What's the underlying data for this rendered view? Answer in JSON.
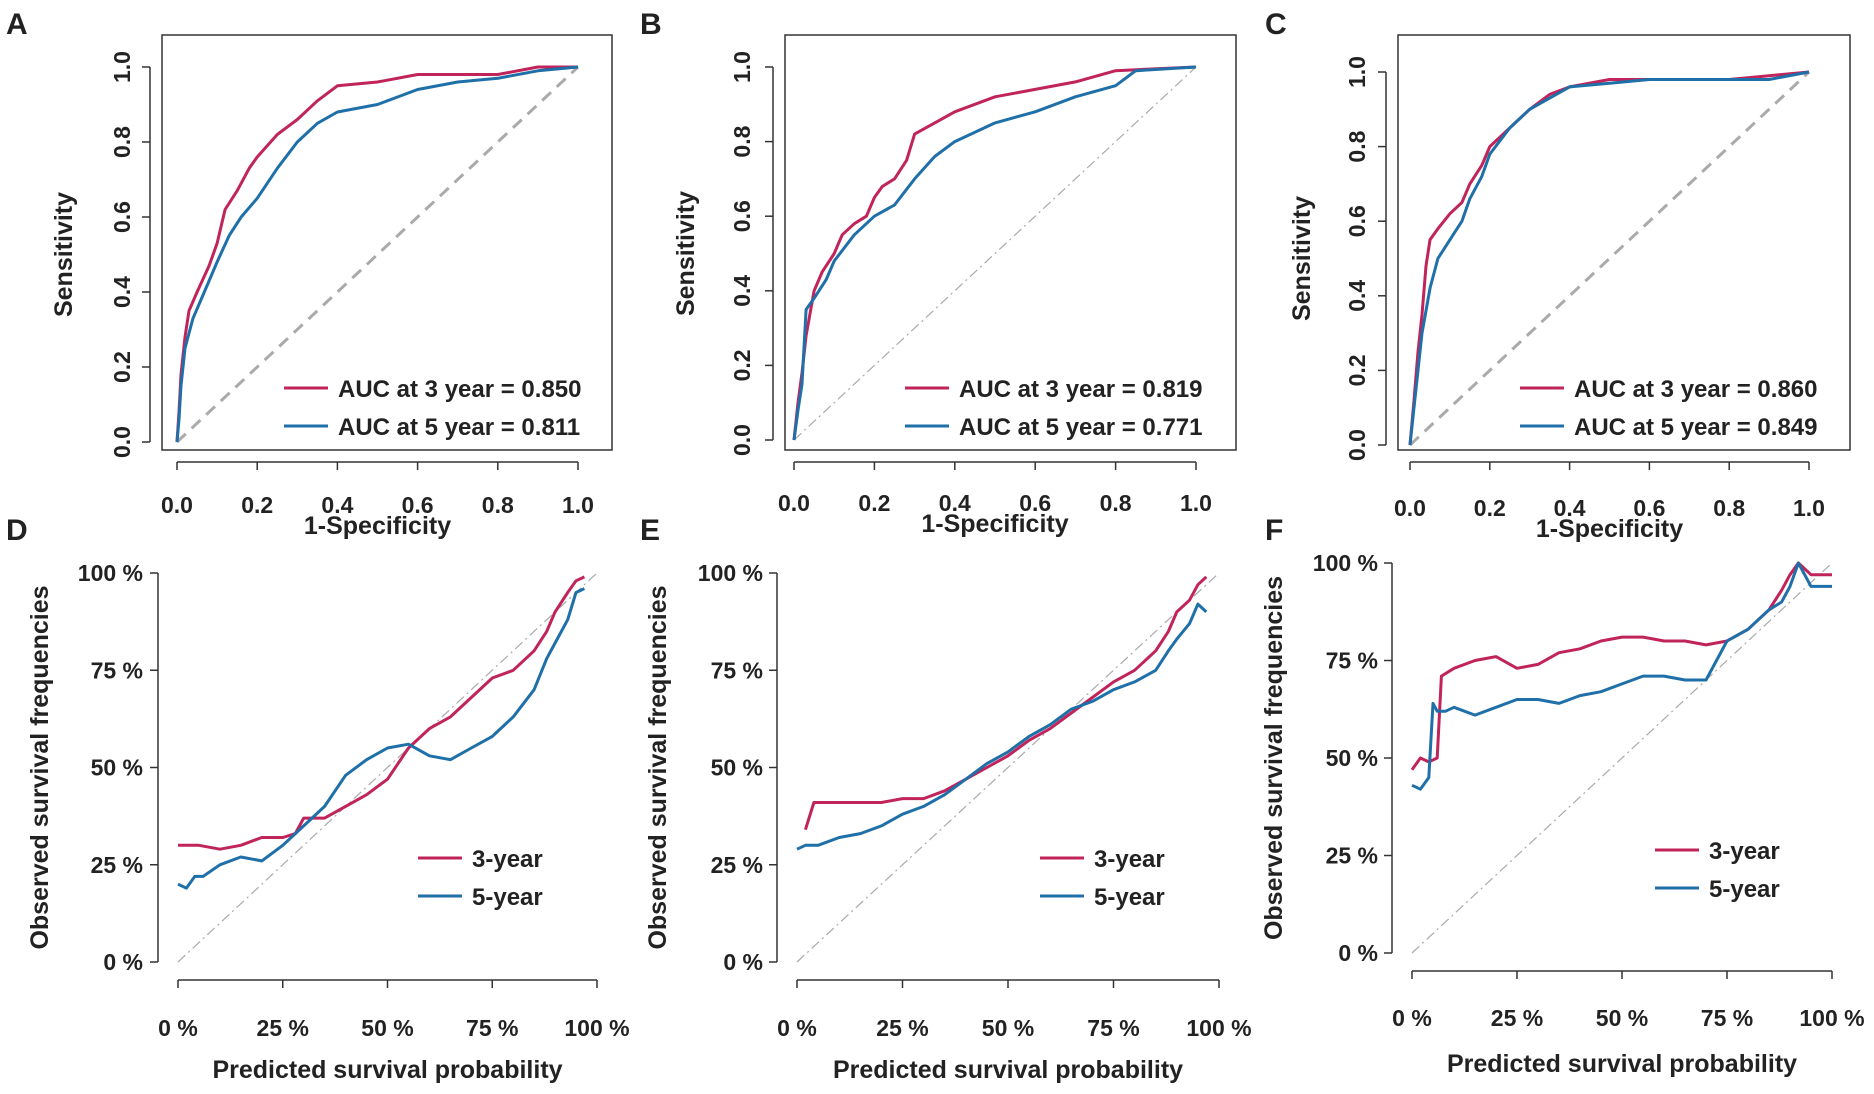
{
  "figure": {
    "colors": {
      "three_year": "#c0245a",
      "five_year": "#1f6fa8",
      "reference": "#aaaaaa",
      "axis": "#333333"
    }
  },
  "chart_data": [
    {
      "panel": "A",
      "type": "line",
      "frame": "box",
      "diagonal": "dashed",
      "xlabel": "1-Specificity",
      "ylabel": "Sensitivity",
      "xlim": [
        0,
        1
      ],
      "ylim": [
        0,
        1
      ],
      "x_ticks": [
        0,
        0.2,
        0.4,
        0.6,
        0.8,
        1.0
      ],
      "x_tick_labels": [
        "0.0",
        "0.2",
        "0.4",
        "0.6",
        "0.8",
        "1.0"
      ],
      "y_ticks": [
        0,
        0.2,
        0.4,
        0.6,
        0.8,
        1.0
      ],
      "y_tick_labels": [
        "0.0",
        "0.2",
        "0.4",
        "0.6",
        "0.8",
        "1.0"
      ],
      "legend_position": "bottom-right",
      "series": [
        {
          "name": "AUC at 3 year = 0.850",
          "color": "#c0245a",
          "x": [
            0,
            0.005,
            0.01,
            0.02,
            0.03,
            0.05,
            0.08,
            0.1,
            0.12,
            0.15,
            0.18,
            0.2,
            0.25,
            0.3,
            0.35,
            0.4,
            0.5,
            0.6,
            0.8,
            0.9,
            1.0
          ],
          "y": [
            0,
            0.08,
            0.18,
            0.28,
            0.35,
            0.4,
            0.47,
            0.53,
            0.62,
            0.67,
            0.73,
            0.76,
            0.82,
            0.86,
            0.91,
            0.95,
            0.96,
            0.98,
            0.98,
            1.0,
            1.0
          ]
        },
        {
          "name": "AUC at 5 year = 0.811",
          "color": "#1f6fa8",
          "x": [
            0,
            0.005,
            0.01,
            0.02,
            0.04,
            0.06,
            0.08,
            0.1,
            0.13,
            0.16,
            0.2,
            0.25,
            0.3,
            0.35,
            0.4,
            0.5,
            0.6,
            0.7,
            0.8,
            0.9,
            1.0
          ],
          "y": [
            0,
            0.06,
            0.15,
            0.25,
            0.33,
            0.38,
            0.43,
            0.48,
            0.55,
            0.6,
            0.65,
            0.73,
            0.8,
            0.85,
            0.88,
            0.9,
            0.94,
            0.96,
            0.97,
            0.99,
            1.0
          ]
        }
      ]
    },
    {
      "panel": "B",
      "type": "line",
      "frame": "box",
      "diagonal": "dashdot",
      "xlabel": "1-Specificity",
      "ylabel": "Sensitivity",
      "xlim": [
        0,
        1
      ],
      "ylim": [
        0,
        1
      ],
      "x_ticks": [
        0,
        0.2,
        0.4,
        0.6,
        0.8,
        1.0
      ],
      "x_tick_labels": [
        "0.0",
        "0.2",
        "0.4",
        "0.6",
        "0.8",
        "1.0"
      ],
      "y_ticks": [
        0,
        0.2,
        0.4,
        0.6,
        0.8,
        1.0
      ],
      "y_tick_labels": [
        "0.0",
        "0.2",
        "0.4",
        "0.6",
        "0.8",
        "1.0"
      ],
      "legend_position": "bottom-right",
      "series": [
        {
          "name": "AUC at 3 year = 0.819",
          "color": "#c0245a",
          "x": [
            0,
            0.01,
            0.02,
            0.03,
            0.05,
            0.07,
            0.1,
            0.12,
            0.15,
            0.18,
            0.2,
            0.22,
            0.25,
            0.28,
            0.3,
            0.35,
            0.4,
            0.45,
            0.5,
            0.6,
            0.7,
            0.8,
            1.0
          ],
          "y": [
            0,
            0.1,
            0.18,
            0.28,
            0.4,
            0.45,
            0.5,
            0.55,
            0.58,
            0.6,
            0.65,
            0.68,
            0.7,
            0.75,
            0.82,
            0.85,
            0.88,
            0.9,
            0.92,
            0.94,
            0.96,
            0.99,
            1.0
          ]
        },
        {
          "name": "AUC at 5 year = 0.771",
          "color": "#1f6fa8",
          "x": [
            0,
            0.01,
            0.02,
            0.03,
            0.05,
            0.08,
            0.1,
            0.15,
            0.2,
            0.25,
            0.3,
            0.35,
            0.4,
            0.5,
            0.6,
            0.7,
            0.8,
            0.85,
            1.0
          ],
          "y": [
            0,
            0.08,
            0.15,
            0.35,
            0.38,
            0.43,
            0.48,
            0.55,
            0.6,
            0.63,
            0.7,
            0.76,
            0.8,
            0.85,
            0.88,
            0.92,
            0.95,
            0.99,
            1.0
          ]
        }
      ]
    },
    {
      "panel": "C",
      "type": "line",
      "frame": "box",
      "diagonal": "dashed",
      "xlabel": "1-Specificity",
      "ylabel": "Sensitivity",
      "xlim": [
        0,
        1
      ],
      "ylim": [
        0,
        1
      ],
      "x_ticks": [
        0,
        0.2,
        0.4,
        0.6,
        0.8,
        1.0
      ],
      "x_tick_labels": [
        "0.0",
        "0.2",
        "0.4",
        "0.6",
        "0.8",
        "1.0"
      ],
      "y_ticks": [
        0,
        0.2,
        0.4,
        0.6,
        0.8,
        1.0
      ],
      "y_tick_labels": [
        "0.0",
        "0.2",
        "0.4",
        "0.6",
        "0.8",
        "1.0"
      ],
      "legend_position": "bottom-right",
      "series": [
        {
          "name": "AUC at 3 year = 0.860",
          "color": "#c0245a",
          "x": [
            0,
            0.01,
            0.02,
            0.03,
            0.04,
            0.05,
            0.07,
            0.1,
            0.13,
            0.15,
            0.18,
            0.2,
            0.25,
            0.3,
            0.35,
            0.4,
            0.5,
            0.6,
            0.8,
            0.9,
            1.0
          ],
          "y": [
            0,
            0.12,
            0.25,
            0.35,
            0.48,
            0.55,
            0.58,
            0.62,
            0.65,
            0.7,
            0.75,
            0.8,
            0.85,
            0.9,
            0.94,
            0.96,
            0.98,
            0.98,
            0.98,
            0.99,
            1.0
          ]
        },
        {
          "name": "AUC at 5 year = 0.849",
          "color": "#1f6fa8",
          "x": [
            0,
            0.01,
            0.02,
            0.03,
            0.05,
            0.07,
            0.1,
            0.13,
            0.15,
            0.18,
            0.2,
            0.25,
            0.3,
            0.35,
            0.4,
            0.5,
            0.6,
            0.8,
            0.9,
            1.0
          ],
          "y": [
            0,
            0.1,
            0.2,
            0.3,
            0.42,
            0.5,
            0.55,
            0.6,
            0.66,
            0.72,
            0.78,
            0.85,
            0.9,
            0.93,
            0.96,
            0.97,
            0.98,
            0.98,
            0.98,
            1.0
          ]
        }
      ]
    },
    {
      "panel": "D",
      "type": "line",
      "frame": "axes",
      "diagonal": "dashdot",
      "xlabel": "Predicted survival probability",
      "ylabel": "Observed survival frequencies",
      "xlim": [
        0,
        1
      ],
      "ylim": [
        0,
        1
      ],
      "x_ticks": [
        0,
        0.25,
        0.5,
        0.75,
        1.0
      ],
      "x_tick_labels": [
        "0 %",
        "25 %",
        "50 %",
        "75 %",
        "100 %"
      ],
      "y_ticks": [
        0,
        0.25,
        0.5,
        0.75,
        1.0
      ],
      "y_tick_labels": [
        "0 %",
        "25 %",
        "50 %",
        "75 %",
        "100 %"
      ],
      "legend_position": "bottom-right",
      "series": [
        {
          "name": "3-year",
          "color": "#c0245a",
          "x": [
            0.0,
            0.05,
            0.1,
            0.15,
            0.2,
            0.25,
            0.28,
            0.3,
            0.35,
            0.4,
            0.45,
            0.5,
            0.55,
            0.6,
            0.65,
            0.7,
            0.75,
            0.8,
            0.85,
            0.88,
            0.9,
            0.93,
            0.95,
            0.97
          ],
          "y": [
            0.3,
            0.3,
            0.29,
            0.3,
            0.32,
            0.32,
            0.33,
            0.37,
            0.37,
            0.4,
            0.43,
            0.47,
            0.55,
            0.6,
            0.63,
            0.68,
            0.73,
            0.75,
            0.8,
            0.85,
            0.9,
            0.95,
            0.98,
            0.99
          ]
        },
        {
          "name": "5-year",
          "color": "#1f6fa8",
          "x": [
            0.0,
            0.02,
            0.04,
            0.06,
            0.1,
            0.15,
            0.2,
            0.25,
            0.3,
            0.35,
            0.4,
            0.45,
            0.5,
            0.55,
            0.6,
            0.65,
            0.7,
            0.75,
            0.8,
            0.85,
            0.88,
            0.9,
            0.93,
            0.95,
            0.97
          ],
          "y": [
            0.2,
            0.19,
            0.22,
            0.22,
            0.25,
            0.27,
            0.26,
            0.3,
            0.35,
            0.4,
            0.48,
            0.52,
            0.55,
            0.56,
            0.53,
            0.52,
            0.55,
            0.58,
            0.63,
            0.7,
            0.78,
            0.82,
            0.88,
            0.95,
            0.96
          ]
        }
      ]
    },
    {
      "panel": "E",
      "type": "line",
      "frame": "axes",
      "diagonal": "dashdot",
      "xlabel": "Predicted survival probability",
      "ylabel": "Observed survival frequencies",
      "xlim": [
        0,
        1
      ],
      "ylim": [
        0,
        1
      ],
      "x_ticks": [
        0,
        0.25,
        0.5,
        0.75,
        1.0
      ],
      "x_tick_labels": [
        "0 %",
        "25 %",
        "50 %",
        "75 %",
        "100 %"
      ],
      "y_ticks": [
        0,
        0.25,
        0.5,
        0.75,
        1.0
      ],
      "y_tick_labels": [
        "0 %",
        "25 %",
        "50 %",
        "75 %",
        "100 %"
      ],
      "legend_position": "bottom-right",
      "series": [
        {
          "name": "3-year",
          "color": "#c0245a",
          "x": [
            0.02,
            0.04,
            0.1,
            0.2,
            0.25,
            0.3,
            0.35,
            0.4,
            0.45,
            0.5,
            0.55,
            0.6,
            0.65,
            0.7,
            0.75,
            0.8,
            0.85,
            0.88,
            0.9,
            0.93,
            0.95,
            0.97
          ],
          "y": [
            0.34,
            0.41,
            0.41,
            0.41,
            0.42,
            0.42,
            0.44,
            0.47,
            0.5,
            0.53,
            0.57,
            0.6,
            0.64,
            0.68,
            0.72,
            0.75,
            0.8,
            0.85,
            0.9,
            0.93,
            0.97,
            0.99
          ]
        },
        {
          "name": "5-year",
          "color": "#1f6fa8",
          "x": [
            0.0,
            0.02,
            0.05,
            0.1,
            0.15,
            0.2,
            0.25,
            0.3,
            0.35,
            0.4,
            0.45,
            0.5,
            0.55,
            0.6,
            0.65,
            0.7,
            0.75,
            0.8,
            0.85,
            0.88,
            0.9,
            0.93,
            0.95,
            0.97
          ],
          "y": [
            0.29,
            0.3,
            0.3,
            0.32,
            0.33,
            0.35,
            0.38,
            0.4,
            0.43,
            0.47,
            0.51,
            0.54,
            0.58,
            0.61,
            0.65,
            0.67,
            0.7,
            0.72,
            0.75,
            0.8,
            0.83,
            0.87,
            0.92,
            0.9
          ]
        }
      ]
    },
    {
      "panel": "F",
      "type": "line",
      "frame": "axes",
      "diagonal": "dashdot",
      "xlabel": "Predicted survival probability",
      "ylabel": "Observed survival frequencies",
      "xlim": [
        0,
        1
      ],
      "ylim": [
        0,
        1
      ],
      "x_ticks": [
        0,
        0.25,
        0.5,
        0.75,
        1.0
      ],
      "x_tick_labels": [
        "0 %",
        "25 %",
        "50 %",
        "75 %",
        "100 %"
      ],
      "y_ticks": [
        0,
        0.25,
        0.5,
        0.75,
        1.0
      ],
      "y_tick_labels": [
        "0 %",
        "25 %",
        "50 %",
        "75 %",
        "100 %"
      ],
      "legend_position": "bottom-right",
      "series": [
        {
          "name": "3-year",
          "color": "#c0245a",
          "x": [
            0.0,
            0.02,
            0.04,
            0.06,
            0.07,
            0.1,
            0.15,
            0.2,
            0.25,
            0.3,
            0.35,
            0.4,
            0.45,
            0.5,
            0.55,
            0.6,
            0.65,
            0.7,
            0.75,
            0.8,
            0.85,
            0.88,
            0.9,
            0.92,
            0.95,
            1.0
          ],
          "y": [
            0.47,
            0.5,
            0.49,
            0.5,
            0.71,
            0.73,
            0.75,
            0.76,
            0.73,
            0.74,
            0.77,
            0.78,
            0.8,
            0.81,
            0.81,
            0.8,
            0.8,
            0.79,
            0.8,
            0.83,
            0.88,
            0.93,
            0.97,
            1.0,
            0.97,
            0.97
          ]
        },
        {
          "name": "5-year",
          "color": "#1f6fa8",
          "x": [
            0.0,
            0.02,
            0.04,
            0.05,
            0.06,
            0.08,
            0.1,
            0.15,
            0.2,
            0.25,
            0.3,
            0.35,
            0.4,
            0.45,
            0.5,
            0.55,
            0.6,
            0.65,
            0.7,
            0.75,
            0.8,
            0.85,
            0.88,
            0.9,
            0.92,
            0.95,
            1.0
          ],
          "y": [
            0.43,
            0.42,
            0.45,
            0.64,
            0.62,
            0.62,
            0.63,
            0.61,
            0.63,
            0.65,
            0.65,
            0.64,
            0.66,
            0.67,
            0.69,
            0.71,
            0.71,
            0.7,
            0.7,
            0.8,
            0.83,
            0.88,
            0.9,
            0.94,
            1.0,
            0.94,
            0.94
          ]
        }
      ]
    }
  ]
}
